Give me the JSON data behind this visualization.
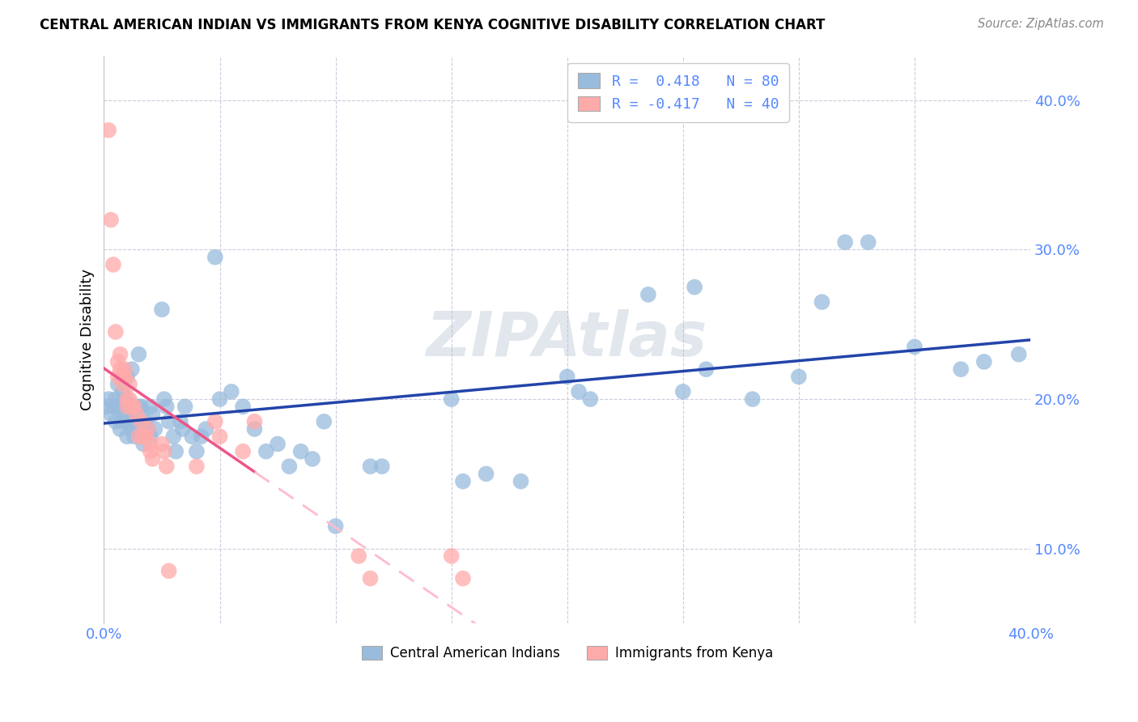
{
  "title": "CENTRAL AMERICAN INDIAN VS IMMIGRANTS FROM KENYA COGNITIVE DISABILITY CORRELATION CHART",
  "source": "Source: ZipAtlas.com",
  "ylabel": "Cognitive Disability",
  "legend_blue_R": "0.418",
  "legend_blue_N": "80",
  "legend_pink_R": "-0.417",
  "legend_pink_N": "40",
  "legend_label_blue": "Central American Indians",
  "legend_label_pink": "Immigrants from Kenya",
  "watermark": "ZIPAtlas",
  "blue_scatter_color": "#99BBDD",
  "pink_scatter_color": "#FFAAAA",
  "blue_line_color": "#2244AA",
  "pink_line_color": "#EE5588",
  "pink_dash_color": "#FFBBCC",
  "axis_color": "#5588FF",
  "blue_scatter": [
    [
      0.001,
      0.195
    ],
    [
      0.002,
      0.2
    ],
    [
      0.003,
      0.19
    ],
    [
      0.004,
      0.195
    ],
    [
      0.005,
      0.2
    ],
    [
      0.005,
      0.185
    ],
    [
      0.006,
      0.21
    ],
    [
      0.006,
      0.195
    ],
    [
      0.007,
      0.18
    ],
    [
      0.007,
      0.195
    ],
    [
      0.008,
      0.205
    ],
    [
      0.008,
      0.185
    ],
    [
      0.009,
      0.2
    ],
    [
      0.009,
      0.19
    ],
    [
      0.01,
      0.215
    ],
    [
      0.01,
      0.175
    ],
    [
      0.011,
      0.195
    ],
    [
      0.011,
      0.185
    ],
    [
      0.012,
      0.22
    ],
    [
      0.012,
      0.18
    ],
    [
      0.013,
      0.195
    ],
    [
      0.013,
      0.175
    ],
    [
      0.014,
      0.185
    ],
    [
      0.015,
      0.23
    ],
    [
      0.015,
      0.195
    ],
    [
      0.016,
      0.195
    ],
    [
      0.017,
      0.17
    ],
    [
      0.018,
      0.185
    ],
    [
      0.019,
      0.18
    ],
    [
      0.02,
      0.195
    ],
    [
      0.02,
      0.175
    ],
    [
      0.021,
      0.19
    ],
    [
      0.022,
      0.18
    ],
    [
      0.025,
      0.26
    ],
    [
      0.026,
      0.2
    ],
    [
      0.027,
      0.195
    ],
    [
      0.028,
      0.185
    ],
    [
      0.03,
      0.175
    ],
    [
      0.031,
      0.165
    ],
    [
      0.033,
      0.185
    ],
    [
      0.034,
      0.18
    ],
    [
      0.035,
      0.195
    ],
    [
      0.038,
      0.175
    ],
    [
      0.04,
      0.165
    ],
    [
      0.042,
      0.175
    ],
    [
      0.044,
      0.18
    ],
    [
      0.048,
      0.295
    ],
    [
      0.05,
      0.2
    ],
    [
      0.055,
      0.205
    ],
    [
      0.06,
      0.195
    ],
    [
      0.065,
      0.18
    ],
    [
      0.07,
      0.165
    ],
    [
      0.075,
      0.17
    ],
    [
      0.08,
      0.155
    ],
    [
      0.085,
      0.165
    ],
    [
      0.09,
      0.16
    ],
    [
      0.095,
      0.185
    ],
    [
      0.1,
      0.115
    ],
    [
      0.115,
      0.155
    ],
    [
      0.12,
      0.155
    ],
    [
      0.15,
      0.2
    ],
    [
      0.155,
      0.145
    ],
    [
      0.165,
      0.15
    ],
    [
      0.18,
      0.145
    ],
    [
      0.2,
      0.215
    ],
    [
      0.205,
      0.205
    ],
    [
      0.21,
      0.2
    ],
    [
      0.235,
      0.27
    ],
    [
      0.25,
      0.205
    ],
    [
      0.255,
      0.275
    ],
    [
      0.26,
      0.22
    ],
    [
      0.28,
      0.2
    ],
    [
      0.3,
      0.215
    ],
    [
      0.31,
      0.265
    ],
    [
      0.32,
      0.305
    ],
    [
      0.33,
      0.305
    ],
    [
      0.35,
      0.235
    ],
    [
      0.37,
      0.22
    ],
    [
      0.38,
      0.225
    ],
    [
      0.395,
      0.23
    ]
  ],
  "pink_scatter": [
    [
      0.002,
      0.38
    ],
    [
      0.003,
      0.32
    ],
    [
      0.004,
      0.29
    ],
    [
      0.005,
      0.245
    ],
    [
      0.006,
      0.225
    ],
    [
      0.006,
      0.215
    ],
    [
      0.007,
      0.23
    ],
    [
      0.007,
      0.22
    ],
    [
      0.008,
      0.215
    ],
    [
      0.008,
      0.21
    ],
    [
      0.009,
      0.22
    ],
    [
      0.009,
      0.215
    ],
    [
      0.01,
      0.2
    ],
    [
      0.01,
      0.195
    ],
    [
      0.011,
      0.21
    ],
    [
      0.011,
      0.2
    ],
    [
      0.012,
      0.195
    ],
    [
      0.013,
      0.195
    ],
    [
      0.014,
      0.19
    ],
    [
      0.015,
      0.175
    ],
    [
      0.016,
      0.185
    ],
    [
      0.017,
      0.175
    ],
    [
      0.018,
      0.175
    ],
    [
      0.019,
      0.18
    ],
    [
      0.02,
      0.17
    ],
    [
      0.02,
      0.165
    ],
    [
      0.021,
      0.16
    ],
    [
      0.025,
      0.17
    ],
    [
      0.026,
      0.165
    ],
    [
      0.027,
      0.155
    ],
    [
      0.028,
      0.085
    ],
    [
      0.04,
      0.155
    ],
    [
      0.048,
      0.185
    ],
    [
      0.05,
      0.175
    ],
    [
      0.06,
      0.165
    ],
    [
      0.065,
      0.185
    ],
    [
      0.11,
      0.095
    ],
    [
      0.115,
      0.08
    ],
    [
      0.15,
      0.095
    ],
    [
      0.155,
      0.08
    ]
  ],
  "xlim": [
    0.0,
    0.4
  ],
  "ylim": [
    0.05,
    0.43
  ],
  "yticks": [
    0.1,
    0.2,
    0.3,
    0.4
  ],
  "ytick_labels": [
    "10.0%",
    "20.0%",
    "30.0%",
    "40.0%"
  ],
  "xticks": [
    0.0,
    0.05,
    0.1,
    0.15,
    0.2,
    0.25,
    0.3,
    0.35,
    0.4
  ],
  "background_color": "#FFFFFF",
  "grid_color": "#CCCCDD"
}
